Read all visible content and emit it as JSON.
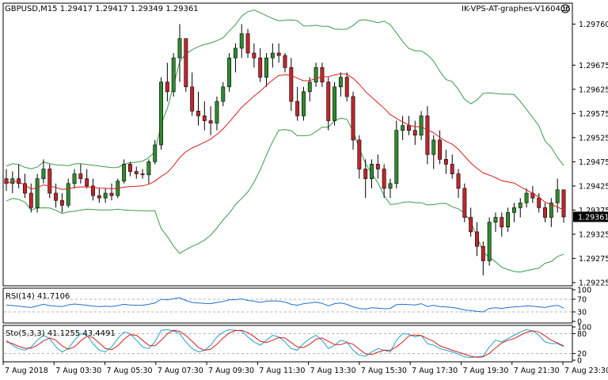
{
  "header": {
    "symbol_line": "GBPUSD,M15  1.29417 1.29417 1.29349 1.29361",
    "broker_line": "IK-VPS-AT-graphes-V160406"
  },
  "indicators": {
    "rsi_label": "RSI(14) 41.7106",
    "sto_label": "Sto(5,3,3) 41.1255 43.4491"
  },
  "colors": {
    "bull": "#2f8a2f",
    "bear": "#c0262d",
    "band": "#3a9a4c",
    "ma": "#d91c1c",
    "rsi": "#1e6fd6",
    "sto_main": "#1fa3c9",
    "sto_signal": "#d91c1c",
    "grid": "#9a9a9a",
    "price_tag_bg": "#000000",
    "price_tag_fg": "#ffffff"
  },
  "chart_data": [
    {
      "type": "candlestick",
      "symbol": "GBPUSD",
      "timeframe": "M15",
      "last_price": "1.29361",
      "y_ticks": [
        "1.29760",
        "1.29675",
        "1.29625",
        "1.29575",
        "1.29525",
        "1.29475",
        "1.29425",
        "1.29375",
        "1.29325",
        "1.29275",
        "1.29225"
      ],
      "ylim": [
        1.2922,
        1.298
      ],
      "x_ticks": [
        "7 Aug 2018",
        "7 Aug 03:30",
        "7 Aug 05:30",
        "7 Aug 07:30",
        "7 Aug 09:30",
        "7 Aug 11:30",
        "7 Aug 13:30",
        "7 Aug 15:30",
        "7 Aug 17:30",
        "7 Aug 19:30",
        "7 Aug 21:30",
        "7 Aug 23:30"
      ],
      "candles": [
        [
          1.2944,
          1.2946,
          1.29415,
          1.2943
        ],
        [
          1.2943,
          1.29455,
          1.2941,
          1.2944
        ],
        [
          1.2944,
          1.2947,
          1.2942,
          1.2943
        ],
        [
          1.2943,
          1.2945,
          1.294,
          1.2941
        ],
        [
          1.2941,
          1.2943,
          1.2937,
          1.2938
        ],
        [
          1.2938,
          1.2945,
          1.2937,
          1.2944
        ],
        [
          1.2944,
          1.2948,
          1.2943,
          1.2946
        ],
        [
          1.2946,
          1.2947,
          1.294,
          1.2941
        ],
        [
          1.2941,
          1.2943,
          1.2938,
          1.29395
        ],
        [
          1.29395,
          1.2941,
          1.2937,
          1.29385
        ],
        [
          1.29385,
          1.2944,
          1.2938,
          1.2943
        ],
        [
          1.2943,
          1.2946,
          1.2942,
          1.2945
        ],
        [
          1.2945,
          1.2947,
          1.2943,
          1.2944
        ],
        [
          1.2944,
          1.2946,
          1.2942,
          1.29425
        ],
        [
          1.29425,
          1.2944,
          1.29395,
          1.29405
        ],
        [
          1.29405,
          1.2942,
          1.2939,
          1.294
        ],
        [
          1.294,
          1.2942,
          1.2939,
          1.2941
        ],
        [
          1.2941,
          1.2943,
          1.29395,
          1.29405
        ],
        [
          1.29405,
          1.2944,
          1.294,
          1.29435
        ],
        [
          1.29435,
          1.2948,
          1.2943,
          1.2947
        ],
        [
          1.2947,
          1.29475,
          1.29445,
          1.29455
        ],
        [
          1.29455,
          1.29465,
          1.2944,
          1.2945
        ],
        [
          1.2945,
          1.2946,
          1.2944,
          1.29448
        ],
        [
          1.29448,
          1.2948,
          1.2943,
          1.29475
        ],
        [
          1.29475,
          1.2952,
          1.2947,
          1.2951
        ],
        [
          1.2951,
          1.2965,
          1.295,
          1.2964
        ],
        [
          1.2964,
          1.2968,
          1.296,
          1.2962
        ],
        [
          1.2962,
          1.297,
          1.2961,
          1.2969
        ],
        [
          1.2969,
          1.2976,
          1.2964,
          1.2973
        ],
        [
          1.2973,
          1.2973,
          1.2962,
          1.2963
        ],
        [
          1.2963,
          1.2966,
          1.2957,
          1.2958
        ],
        [
          1.2958,
          1.2962,
          1.2955,
          1.2957
        ],
        [
          1.2957,
          1.296,
          1.2954,
          1.2956
        ],
        [
          1.2956,
          1.2959,
          1.2953,
          1.29555
        ],
        [
          1.29555,
          1.2961,
          1.2954,
          1.296
        ],
        [
          1.296,
          1.2964,
          1.2959,
          1.2963
        ],
        [
          1.2963,
          1.297,
          1.2962,
          1.2969
        ],
        [
          1.2969,
          1.2972,
          1.2966,
          1.2971
        ],
        [
          1.2971,
          1.2976,
          1.2969,
          1.2974
        ],
        [
          1.2974,
          1.2975,
          1.2969,
          1.297
        ],
        [
          1.297,
          1.2972,
          1.2967,
          1.2969
        ],
        [
          1.2969,
          1.2971,
          1.2964,
          1.2965
        ],
        [
          1.2965,
          1.297,
          1.2963,
          1.2969
        ],
        [
          1.2969,
          1.2972,
          1.2967,
          1.297
        ],
        [
          1.297,
          1.2972,
          1.2968,
          1.29695
        ],
        [
          1.29695,
          1.297,
          1.2966,
          1.2967
        ],
        [
          1.2967,
          1.2969,
          1.2958,
          1.296
        ],
        [
          1.296,
          1.2963,
          1.2956,
          1.2957
        ],
        [
          1.2957,
          1.2963,
          1.2956,
          1.2962
        ],
        [
          1.2962,
          1.2965,
          1.296,
          1.2964
        ],
        [
          1.2964,
          1.2968,
          1.2963,
          1.2967
        ],
        [
          1.2967,
          1.2968,
          1.2963,
          1.2964
        ],
        [
          1.2964,
          1.2965,
          1.2954,
          1.2956
        ],
        [
          1.2956,
          1.2964,
          1.2955,
          1.2963
        ],
        [
          1.2963,
          1.2966,
          1.2961,
          1.2965
        ],
        [
          1.2965,
          1.2966,
          1.296,
          1.2961
        ],
        [
          1.2961,
          1.2962,
          1.295,
          1.2952
        ],
        [
          1.2952,
          1.2953,
          1.2944,
          1.2946
        ],
        [
          1.2946,
          1.2948,
          1.294,
          1.2944
        ],
        [
          1.2944,
          1.2948,
          1.2942,
          1.2947
        ],
        [
          1.2947,
          1.2949,
          1.2944,
          1.2946
        ],
        [
          1.2946,
          1.2947,
          1.294,
          1.2942
        ],
        [
          1.2942,
          1.2944,
          1.294,
          1.2943
        ],
        [
          1.2943,
          1.2956,
          1.2942,
          1.2954
        ],
        [
          1.2954,
          1.2957,
          1.2952,
          1.2955
        ],
        [
          1.2955,
          1.2957,
          1.2953,
          1.2954
        ],
        [
          1.2954,
          1.2956,
          1.2951,
          1.2953
        ],
        [
          1.2953,
          1.2958,
          1.2952,
          1.2957
        ],
        [
          1.2957,
          1.2959,
          1.2947,
          1.2949
        ],
        [
          1.2949,
          1.2953,
          1.2946,
          1.2952
        ],
        [
          1.2952,
          1.2954,
          1.2947,
          1.2948
        ],
        [
          1.2948,
          1.295,
          1.2945,
          1.2947
        ],
        [
          1.2947,
          1.2949,
          1.2944,
          1.2945
        ],
        [
          1.2945,
          1.2946,
          1.294,
          1.2942
        ],
        [
          1.2942,
          1.2943,
          1.2935,
          1.2936
        ],
        [
          1.2936,
          1.2938,
          1.2932,
          1.2933
        ],
        [
          1.2933,
          1.2935,
          1.2928,
          1.293
        ],
        [
          1.293,
          1.2931,
          1.2924,
          1.2927
        ],
        [
          1.2927,
          1.2936,
          1.2926,
          1.2935
        ],
        [
          1.2935,
          1.2937,
          1.2933,
          1.2936
        ],
        [
          1.2936,
          1.2937,
          1.2932,
          1.2934
        ],
        [
          1.2934,
          1.2938,
          1.2933,
          1.2937
        ],
        [
          1.2937,
          1.2939,
          1.2935,
          1.2938
        ],
        [
          1.2938,
          1.294,
          1.2936,
          1.2939
        ],
        [
          1.2939,
          1.2942,
          1.2938,
          1.2941
        ],
        [
          1.2941,
          1.29425,
          1.2939,
          1.294
        ],
        [
          1.294,
          1.2941,
          1.2937,
          1.2938
        ],
        [
          1.2938,
          1.2939,
          1.2935,
          1.2936
        ],
        [
          1.2936,
          1.294,
          1.2934,
          1.2939
        ],
        [
          1.2939,
          1.2944,
          1.2937,
          1.29417
        ],
        [
          1.29417,
          1.29417,
          1.29349,
          1.29361
        ]
      ]
    },
    {
      "type": "line",
      "name": "RSI(14)",
      "last_value": "41.7106",
      "y_ticks": [
        "100",
        "70",
        "30",
        "0"
      ],
      "levels": [
        70,
        30
      ],
      "ylim": [
        0,
        100
      ],
      "series": [
        {
          "values": [
            52,
            50,
            48,
            46,
            44,
            49,
            54,
            50,
            48,
            47,
            52,
            55,
            53,
            51,
            48,
            47,
            48,
            47,
            50,
            54,
            52,
            51,
            51,
            54,
            58,
            70,
            68,
            72,
            75,
            66,
            60,
            58,
            57,
            56,
            60,
            63,
            68,
            69,
            71,
            66,
            64,
            60,
            64,
            65,
            64,
            61,
            54,
            51,
            56,
            58,
            61,
            57,
            49,
            56,
            58,
            54,
            46,
            41,
            39,
            43,
            42,
            40,
            41,
            53,
            54,
            53,
            52,
            56,
            47,
            51,
            47,
            46,
            44,
            41,
            36,
            34,
            32,
            30,
            41,
            43,
            41,
            44,
            46,
            47,
            49,
            48,
            46,
            44,
            48,
            51,
            42
          ]
        }
      ]
    },
    {
      "type": "line",
      "name": "Sto(5,3,3)",
      "main_value": "41.1255",
      "signal_value": "43.4491",
      "y_ticks": [
        "100",
        "80",
        "20",
        "0"
      ],
      "levels": [
        80,
        20
      ],
      "ylim": [
        0,
        100
      ],
      "series": [
        {
          "values": [
            60,
            45,
            35,
            30,
            40,
            60,
            75,
            65,
            40,
            25,
            35,
            60,
            80,
            75,
            50,
            30,
            25,
            40,
            65,
            85,
            80,
            60,
            40,
            35,
            55,
            90,
            92,
            88,
            80,
            55,
            35,
            25,
            30,
            45,
            70,
            85,
            92,
            90,
            88,
            70,
            55,
            45,
            60,
            75,
            70,
            55,
            35,
            30,
            50,
            65,
            75,
            60,
            35,
            45,
            60,
            55,
            30,
            15,
            12,
            25,
            35,
            30,
            25,
            60,
            80,
            78,
            70,
            75,
            50,
            45,
            35,
            30,
            25,
            18,
            10,
            8,
            10,
            12,
            40,
            60,
            55,
            65,
            75,
            85,
            92,
            88,
            75,
            55,
            50,
            50,
            41
          ]
        },
        {
          "values": [
            55,
            50,
            42,
            36,
            36,
            45,
            58,
            67,
            60,
            43,
            33,
            40,
            58,
            72,
            68,
            52,
            35,
            32,
            43,
            63,
            77,
            75,
            60,
            45,
            43,
            60,
            79,
            90,
            87,
            74,
            57,
            38,
            30,
            33,
            48,
            67,
            82,
            89,
            90,
            83,
            71,
            57,
            53,
            60,
            68,
            67,
            53,
            40,
            38,
            48,
            63,
            67,
            57,
            47,
            47,
            53,
            48,
            33,
            19,
            17,
            24,
            30,
            30,
            40,
            55,
            73,
            76,
            74,
            65,
            57,
            43,
            37,
            30,
            24,
            18,
            12,
            9,
            10,
            21,
            37,
            52,
            60,
            65,
            75,
            84,
            88,
            85,
            73,
            60,
            52,
            43
          ]
        }
      ]
    }
  ]
}
